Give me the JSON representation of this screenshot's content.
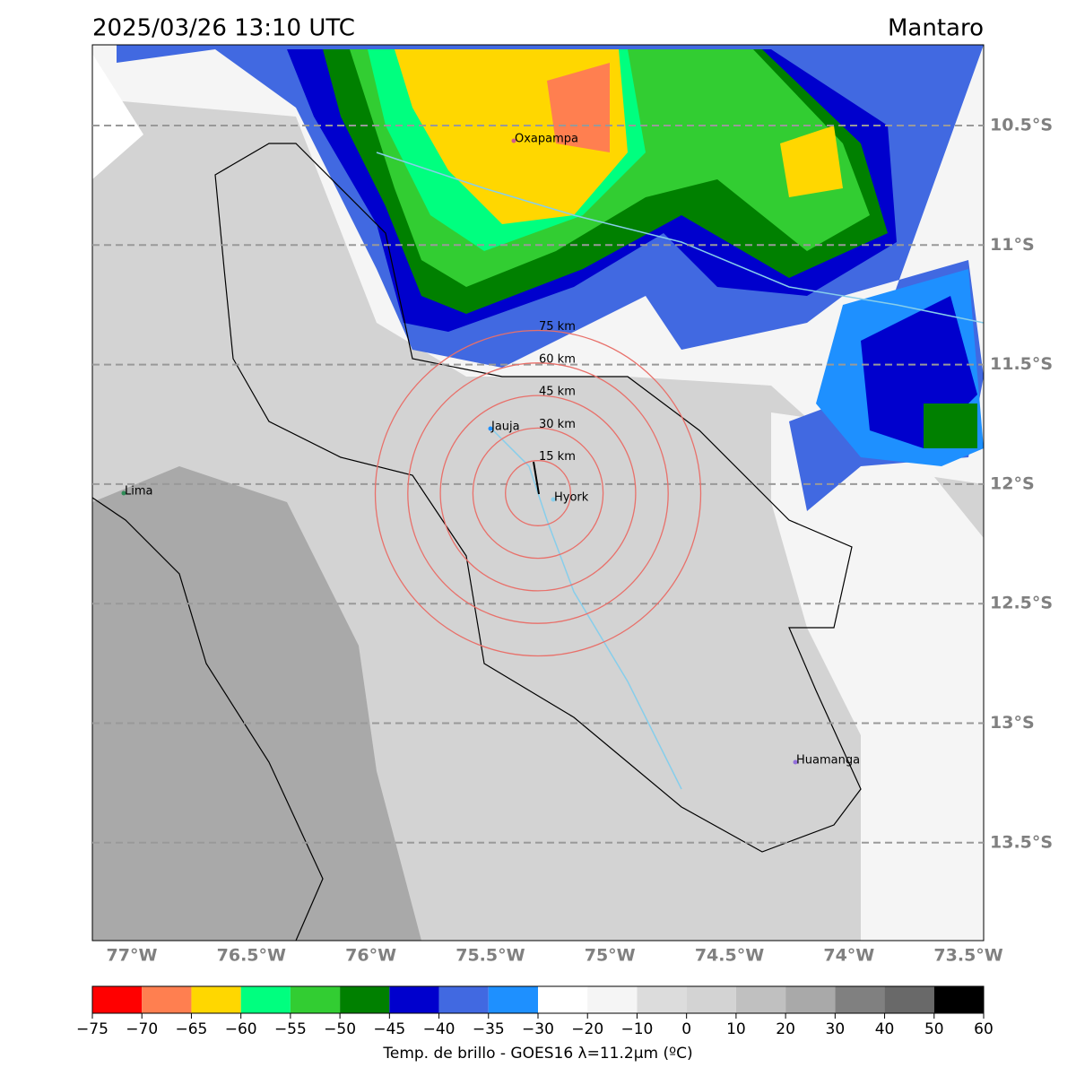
{
  "title": "2025/03/26 13:10 UTC",
  "region": "Mantaro",
  "map": {
    "lat_labels": [
      "10.5°S",
      "11°S",
      "11.5°S",
      "12°S",
      "12.5°S",
      "13°S",
      "13.5°S"
    ],
    "lon_labels": [
      "77°W",
      "76.5°W",
      "76°W",
      "75.5°W",
      "75°W",
      "74.5°W",
      "74°W",
      "73.5°W"
    ],
    "ring_labels": [
      "15 km",
      "30 km",
      "45 km",
      "60 km",
      "75 km"
    ],
    "places": [
      "Oxapampa",
      "Jauja",
      "Lima",
      "Hyork",
      "Huamanga"
    ]
  },
  "colorbar": {
    "label": "Temp. de brillo - GOES16 λ=11.2μm (ºC)",
    "colors": [
      "#ff0000",
      "#ff7f50",
      "#ffd700",
      "#00ff7f",
      "#32cd32",
      "#008000",
      "#0000cd",
      "#4169e1",
      "#1e90ff",
      "#ffffff",
      "#f5f5f5",
      "#dcdcdc",
      "#d3d3d3",
      "#c0c0c0",
      "#a9a9a9",
      "#808080",
      "#696969",
      "#000000"
    ],
    "ticks": [
      {
        "value": -75,
        "label": "−75"
      },
      {
        "value": -70,
        "label": "−70"
      },
      {
        "value": -65,
        "label": "−65"
      },
      {
        "value": -60,
        "label": "−60"
      },
      {
        "value": -55,
        "label": "−55"
      },
      {
        "value": -50,
        "label": "−50"
      },
      {
        "value": -45,
        "label": "−45"
      },
      {
        "value": -40,
        "label": "−40"
      },
      {
        "value": -35,
        "label": "−35"
      },
      {
        "value": -30,
        "label": "−30"
      },
      {
        "value": -20,
        "label": "−20"
      },
      {
        "value": -10,
        "label": "−10"
      },
      0,
      10,
      20,
      30,
      40,
      50,
      60
    ]
  }
}
